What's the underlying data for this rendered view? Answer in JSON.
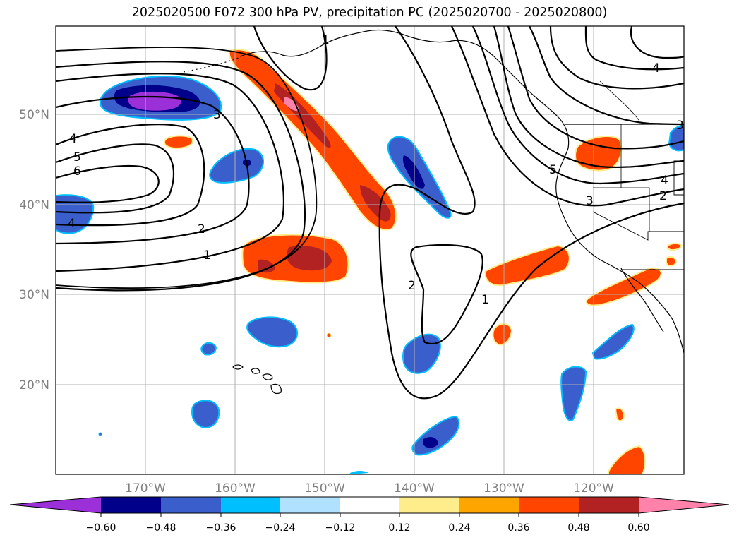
{
  "title": "2025020500 F072 300 hPa PV, precipitation PC (2025020700 - 2025020800)",
  "lon_labels": [
    "170°W",
    "160°W",
    "150°W",
    "140°W",
    "130°W",
    "120°W"
  ],
  "lat_labels": [
    "50°N",
    "40°N",
    "30°N",
    "20°N"
  ],
  "contour_labels": [
    "1",
    "2",
    "3",
    "4",
    "5",
    "6",
    "1",
    "2",
    "3",
    "4",
    "5",
    "4",
    "1",
    "2",
    "3",
    "4"
  ],
  "colorbar": {
    "ticks": [
      "−0.60",
      "−0.48",
      "−0.36",
      "−0.24",
      "−0.12",
      "0.12",
      "0.24",
      "0.36",
      "0.48",
      "0.60"
    ],
    "colors": [
      "#9b30d9",
      "#00008b",
      "#3a5fcd",
      "#00bfff",
      "#b0e2ff",
      "#ffffff",
      "#ffec8b",
      "#ffa500",
      "#ff4500",
      "#b22222",
      "#ff82ab"
    ]
  },
  "colors": {
    "neg_purple": "#9b30d9",
    "neg_navy": "#00008b",
    "neg_blue": "#3a5fcd",
    "neg_cyan": "#00bfff",
    "pos_yellow": "#ffec8b",
    "pos_orange": "#ffa500",
    "pos_redorange": "#ff4500",
    "pos_firebrick": "#b22222",
    "pos_pink": "#ff82ab"
  }
}
